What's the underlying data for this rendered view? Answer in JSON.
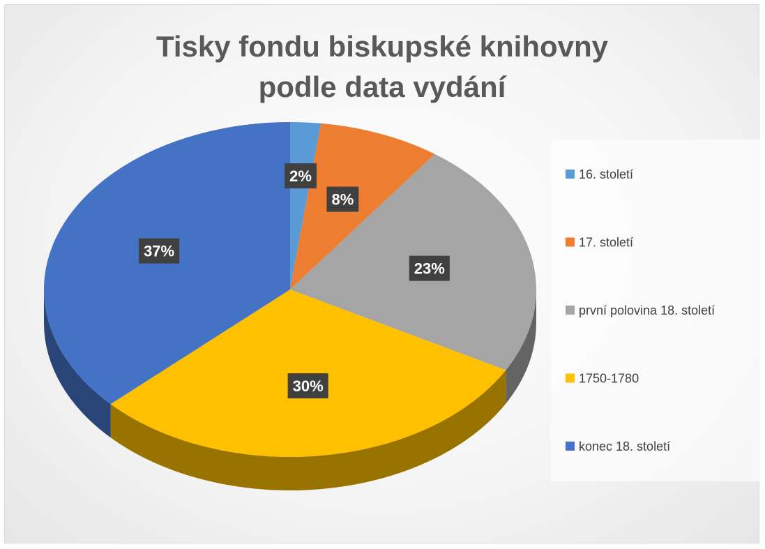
{
  "chart_data": {
    "type": "pie",
    "title": "Tisky fondu biskupské knihovny podle data vydání",
    "categories": [
      "16. století",
      "17. století",
      "první polovina 18. století",
      "1750-1780",
      "konec 18. století"
    ],
    "values": [
      2,
      8,
      23,
      30,
      37
    ],
    "value_labels": [
      "2%",
      "8%",
      "23%",
      "30%",
      "37%"
    ],
    "colors": [
      "#5b9bd5",
      "#ed7d31",
      "#a5a5a5",
      "#ffc000",
      "#4472c4"
    ],
    "legend": "right"
  }
}
